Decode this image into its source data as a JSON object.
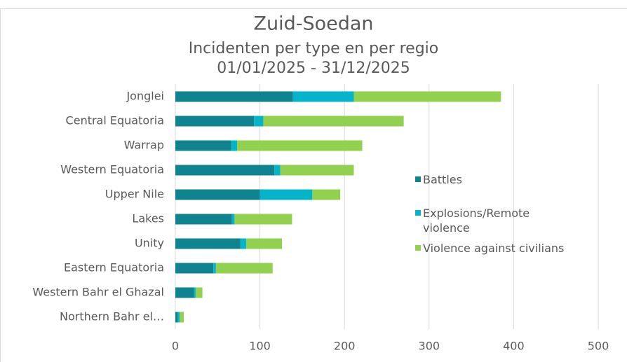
{
  "chart_data": {
    "type": "stacked_barh",
    "title": "Zuid-Soedan",
    "subtitle": "Incidenten per type en per regio",
    "date_range": "01/01/2025 - 31/12/2025",
    "categories": [
      "Jonglei",
      "Central Equatoria",
      "Warrap",
      "Western Equatoria",
      "Upper Nile",
      "Lakes",
      "Unity",
      "Eastern Equatoria",
      "Western Bahr el Ghazal",
      "Northern Bahr el…"
    ],
    "series": [
      {
        "name": "Battles",
        "color": "#0f8390",
        "values": [
          139,
          93,
          66,
          117,
          100,
          67,
          77,
          45,
          22,
          3
        ]
      },
      {
        "name": "Explosions/Remote violence",
        "color": "#06b4c9",
        "values": [
          72,
          11,
          7,
          7,
          62,
          3,
          7,
          3,
          2,
          2
        ]
      },
      {
        "name": "Violence against civilians",
        "color": "#92d050",
        "values": [
          174,
          166,
          148,
          87,
          33,
          68,
          42,
          67,
          8,
          5
        ]
      }
    ],
    "xlim": [
      0,
      500
    ],
    "xticks": [
      0,
      100,
      200,
      300,
      400,
      500
    ],
    "grid": true,
    "legend_position": "right"
  }
}
